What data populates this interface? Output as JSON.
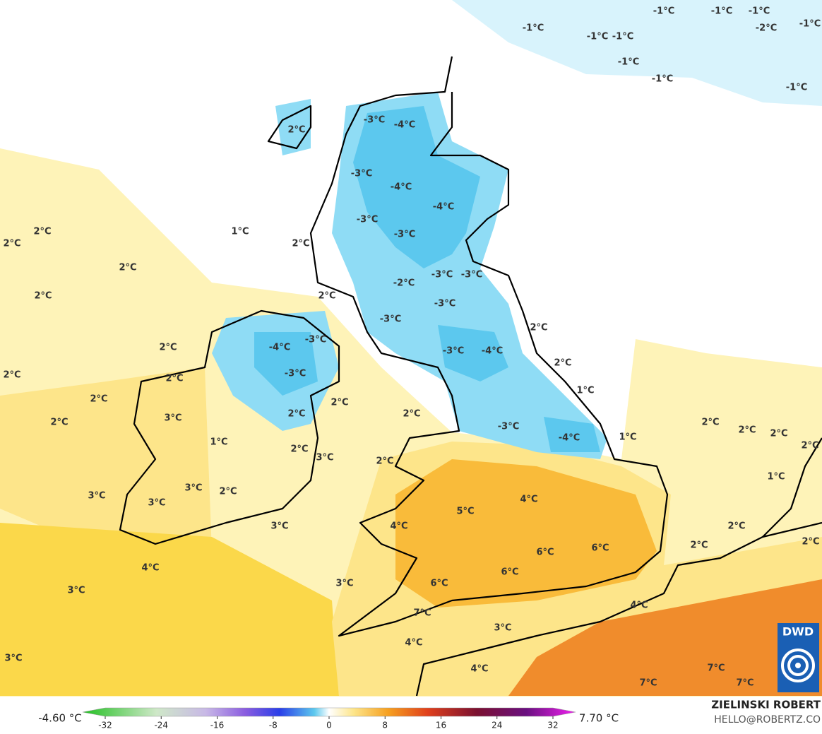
{
  "map": {
    "labels": [
      "-1°C",
      "-1°C",
      "-1°C",
      "-1°C",
      "-2°C",
      "-1°C",
      "-1°C",
      "-1°C",
      "-1°C",
      "-1°C",
      "-1°C",
      "2°C",
      "-3°C",
      "-4°C",
      "-3°C",
      "-4°C",
      "-4°C",
      "-3°C",
      "-3°C",
      "1°C",
      "2°C",
      "2°C",
      "2°C",
      "2°C",
      "2°C",
      "2°C",
      "-3°C",
      "-3°C",
      "-2°C",
      "-3°C",
      "-3°C",
      "2°C",
      "2°C",
      "-4°C",
      "-3°C",
      "-3°C",
      "-4°C",
      "2°C",
      "2°C",
      "-3°C",
      "2°C",
      "1°C",
      "2°C",
      "2°C",
      "2°C",
      "3°C",
      "2°C",
      "2°C",
      "1°C",
      "-3°C",
      "-4°C",
      "1°C",
      "2°C",
      "2°C",
      "2°C",
      "2°C",
      "2°C",
      "3°C",
      "2°C",
      "1°C",
      "3°C",
      "2°C",
      "3°C",
      "3°C",
      "5°C",
      "4°C",
      "4°C",
      "3°C",
      "2°C",
      "2°C",
      "2°C",
      "6°C",
      "6°C",
      "4°C",
      "6°C",
      "3°C",
      "3°C",
      "6°C",
      "7°C",
      "4°C",
      "3°C",
      "4°C",
      "3°C",
      "4°C",
      "7°C",
      "7°C",
      "7°C"
    ]
  },
  "colorbar": {
    "min_label": "-4.60 °C",
    "max_label": "7.70 °C",
    "range": [
      -32,
      32
    ],
    "ticks": [
      -32,
      -24,
      -16,
      -8,
      0,
      8,
      16,
      24,
      32
    ]
  },
  "credit": {
    "name": "ZIELINSKI ROBERT",
    "email": "HELLO@ROBERTZ.CO"
  },
  "logo": "DWD"
}
